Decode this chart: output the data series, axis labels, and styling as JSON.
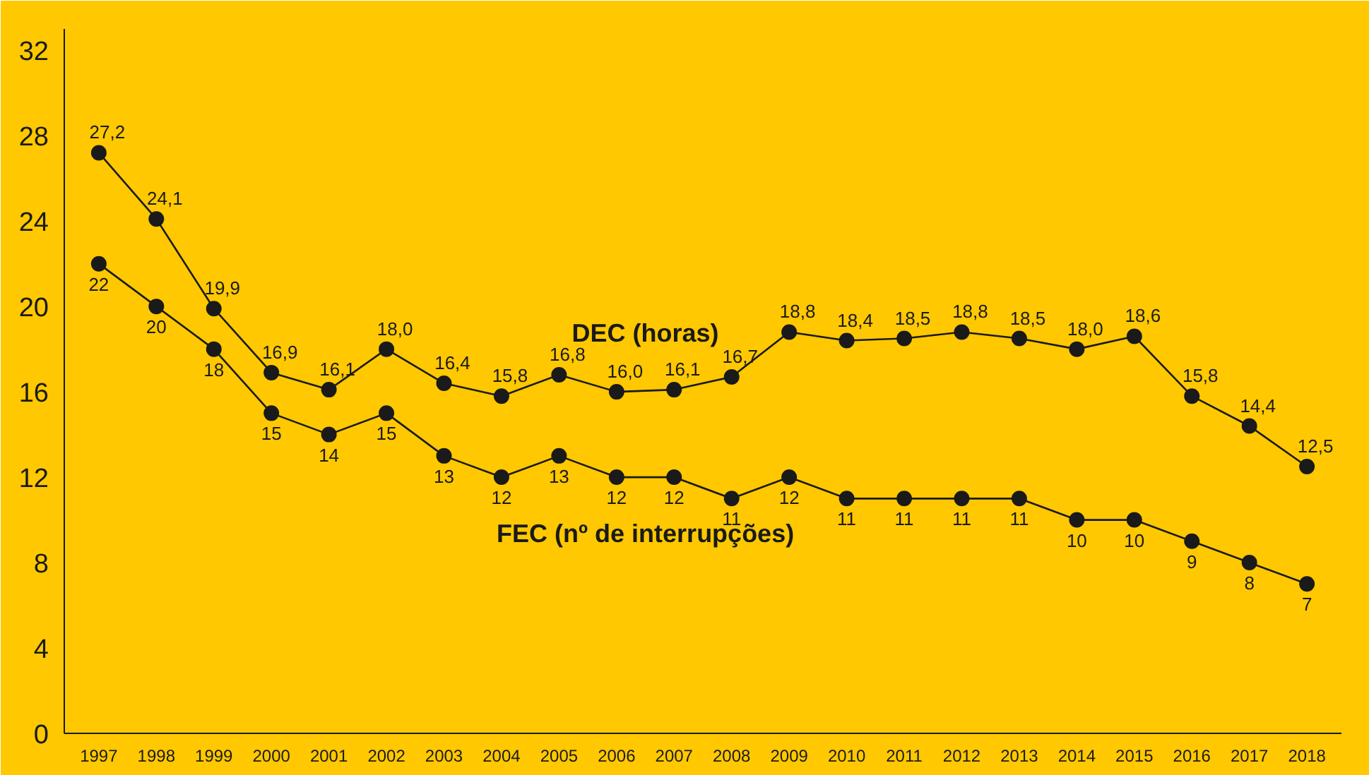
{
  "chart_data": {
    "type": "line",
    "categories": [
      "1997",
      "1998",
      "1999",
      "2000",
      "2001",
      "2002",
      "2003",
      "2004",
      "2005",
      "2006",
      "2007",
      "2008",
      "2009",
      "2010",
      "2011",
      "2012",
      "2013",
      "2014",
      "2015",
      "2016",
      "2017",
      "2018"
    ],
    "series": [
      {
        "name": "DEC (horas)",
        "color": "#1a1a1a",
        "values": [
          27.2,
          24.1,
          19.9,
          16.9,
          16.1,
          18.0,
          16.4,
          15.8,
          16.8,
          16.0,
          16.1,
          16.7,
          18.8,
          18.4,
          18.5,
          18.8,
          18.5,
          18.0,
          18.6,
          15.8,
          14.4,
          12.5
        ],
        "value_labels": [
          "27,2",
          "24,1",
          "19,9",
          "16,9",
          "16,1",
          "18,0",
          "16,4",
          "15,8",
          "16,8",
          "16,0",
          "16,1",
          "16,7",
          "18,8",
          "18,4",
          "18,5",
          "18,8",
          "18,5",
          "18,0",
          "18,6",
          "15,8",
          "14,4",
          "12,5"
        ]
      },
      {
        "name": "FEC (nº de interrupções)",
        "color": "#1a1a1a",
        "values": [
          22,
          20,
          18,
          15,
          14,
          15,
          13,
          12,
          13,
          12,
          12,
          11,
          12,
          11,
          11,
          11,
          11,
          10,
          10,
          9,
          8,
          7
        ],
        "value_labels": [
          "22",
          "20",
          "18",
          "15",
          "14",
          "15",
          "13",
          "12",
          "13",
          "12",
          "12",
          "11",
          "12",
          "11",
          "11",
          "11",
          "11",
          "10",
          "10",
          "9",
          "8",
          "7"
        ]
      }
    ],
    "ylim": [
      0,
      33
    ],
    "yticks": [
      0,
      4,
      8,
      12,
      16,
      20,
      24,
      28,
      32
    ],
    "grid": false,
    "marker": "circle",
    "line_style": "solid"
  }
}
